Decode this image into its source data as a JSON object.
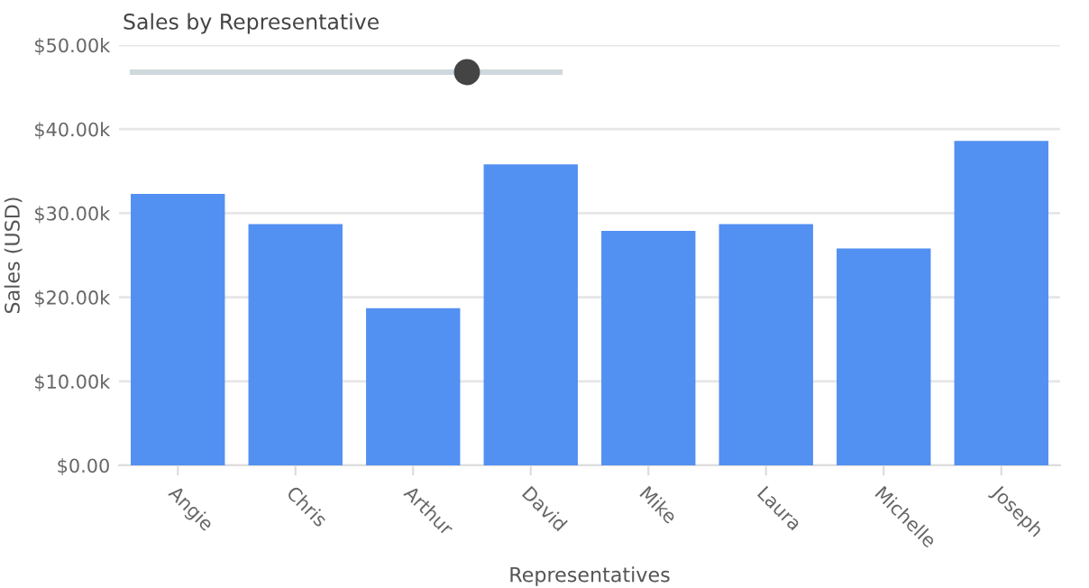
{
  "chart_data": {
    "type": "bar",
    "title": "Sales by Representative",
    "xlabel": "Representatives",
    "ylabel": "Sales (USD)",
    "categories": [
      "Angie",
      "Chris",
      "Arthur",
      "David",
      "Mike",
      "Laura",
      "Michelle",
      "Joseph"
    ],
    "values": [
      32300,
      28700,
      18700,
      35800,
      27900,
      28700,
      25800,
      38600
    ],
    "color": "#5290f2",
    "ylim": [
      0,
      50000
    ],
    "yticks": [
      {
        "value": 0,
        "label": "$0.00"
      },
      {
        "value": 10000,
        "label": "$10.00k"
      },
      {
        "value": 20000,
        "label": "$20.00k"
      },
      {
        "value": 30000,
        "label": "$30.00k"
      },
      {
        "value": 40000,
        "label": "$40.00k"
      },
      {
        "value": 50000,
        "label": "$50.00k"
      }
    ],
    "grid": "y"
  }
}
